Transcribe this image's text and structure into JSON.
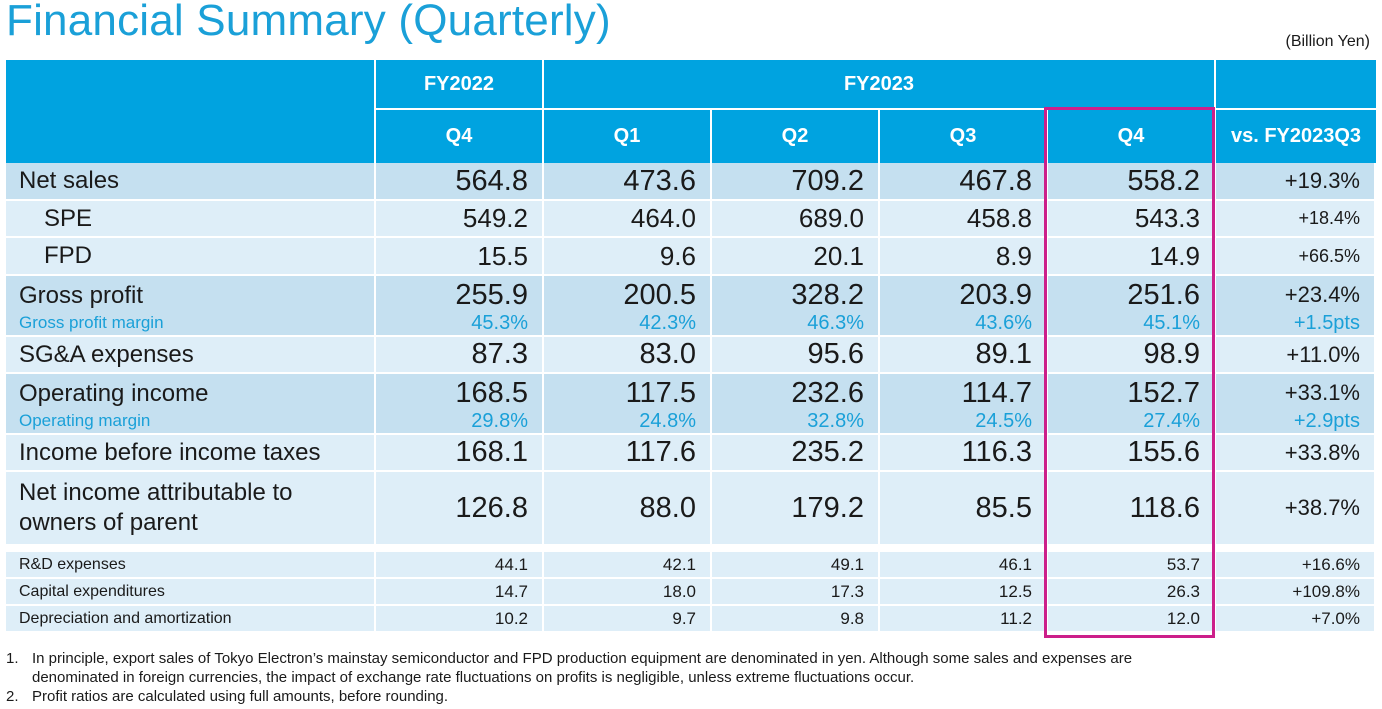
{
  "title": "Financial Summary (Quarterly)",
  "unit": "(Billion Yen)",
  "header": {
    "fy2022": "FY2022",
    "fy2023": "FY2023",
    "quarters": [
      "Q4",
      "Q1",
      "Q2",
      "Q3",
      "Q4"
    ],
    "vs": "vs. FY2023Q3"
  },
  "rows": {
    "net_sales": {
      "label": "Net sales",
      "values": [
        "564.8",
        "473.6",
        "709.2",
        "467.8",
        "558.2"
      ],
      "vs": "+19.3%"
    },
    "spe": {
      "label": "SPE",
      "values": [
        "549.2",
        "464.0",
        "689.0",
        "458.8",
        "543.3"
      ],
      "vs": "+18.4%"
    },
    "fpd": {
      "label": "FPD",
      "values": [
        "15.5",
        "9.6",
        "20.1",
        "8.9",
        "14.9"
      ],
      "vs": "+66.5%"
    },
    "gross_profit": {
      "label": "Gross profit",
      "values": [
        "255.9",
        "200.5",
        "328.2",
        "203.9",
        "251.6"
      ],
      "vs": "+23.4%",
      "sub_label": "Gross profit margin",
      "sub_values": [
        "45.3%",
        "42.3%",
        "46.3%",
        "43.6%",
        "45.1%"
      ],
      "sub_vs": "+1.5pts"
    },
    "sga": {
      "label": "SG&A expenses",
      "values": [
        "87.3",
        "83.0",
        "95.6",
        "89.1",
        "98.9"
      ],
      "vs": "+11.0%"
    },
    "operating_income": {
      "label": "Operating income",
      "values": [
        "168.5",
        "117.5",
        "232.6",
        "114.7",
        "152.7"
      ],
      "vs": "+33.1%",
      "sub_label": "Operating margin",
      "sub_values": [
        "29.8%",
        "24.8%",
        "32.8%",
        "24.5%",
        "27.4%"
      ],
      "sub_vs": "+2.9pts"
    },
    "ibt": {
      "label": "Income before income taxes",
      "values": [
        "168.1",
        "117.6",
        "235.2",
        "116.3",
        "155.6"
      ],
      "vs": "+33.8%"
    },
    "net_income": {
      "label_line1": "Net income attributable to",
      "label_line2": "owners of parent",
      "values": [
        "126.8",
        "88.0",
        "179.2",
        "85.5",
        "118.6"
      ],
      "vs": "+38.7%"
    },
    "rd": {
      "label": "R&D expenses",
      "values": [
        "44.1",
        "42.1",
        "49.1",
        "46.1",
        "53.7"
      ],
      "vs": "+16.6%"
    },
    "capex": {
      "label": "Capital expenditures",
      "values": [
        "14.7",
        "18.0",
        "17.3",
        "12.5",
        "26.3"
      ],
      "vs": "+109.8%"
    },
    "da": {
      "label": "Depreciation and amortization",
      "values": [
        "10.2",
        "9.7",
        "9.8",
        "11.2",
        "12.0"
      ],
      "vs": "+7.0%"
    }
  },
  "notes": [
    {
      "num": "1.",
      "text": "In principle, export sales of Tokyo Electron’s mainstay semiconductor and FPD production equipment are denominated in yen. Although some sales and expenses are denominated in foreign currencies, the impact of exchange rate fluctuations on profits is negligible, unless extreme fluctuations occur."
    },
    {
      "num": "2.",
      "text": "Profit ratios are calculated using full amounts, before rounding."
    }
  ],
  "colors": {
    "header_bg": "#00a3e0",
    "row_dark": "#c5e0f0",
    "row_light": "#deeef8",
    "title": "#1aa0d8",
    "highlight": "#cc1f8a"
  }
}
